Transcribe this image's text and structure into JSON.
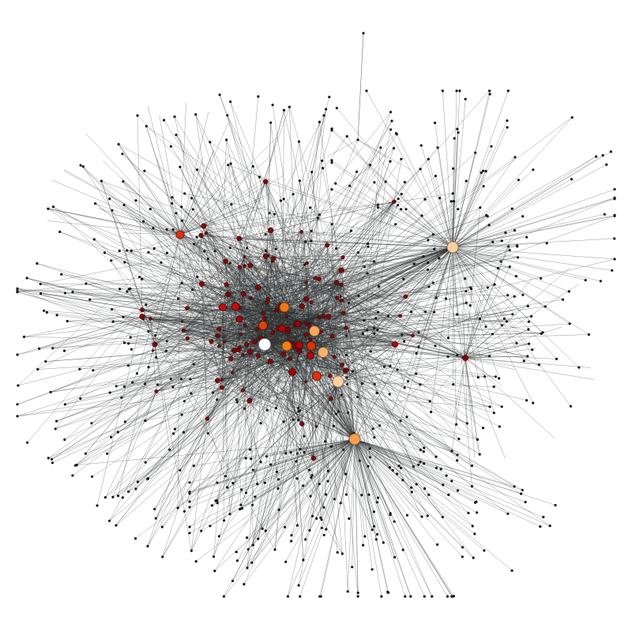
{
  "diagram": {
    "type": "network-graph",
    "layout": "force-directed",
    "background_color": "#ffffff",
    "edge_color": "#2b2f2f",
    "hub_color_scale": [
      "#8b0000",
      "#c01010",
      "#e03010",
      "#f07020",
      "#f8a050",
      "#fdd0a0",
      "#ffffff"
    ],
    "small_node_color": "#141414"
  }
}
